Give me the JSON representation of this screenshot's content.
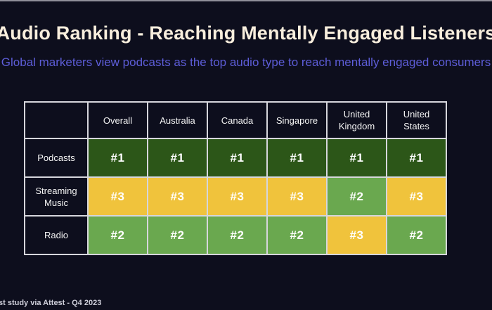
{
  "page": {
    "title": "Audio Ranking - Reaching Mentally Engaged Listeners",
    "subtitle": "Global marketers view podcasts as the top audio type to reach mentally engaged consumers",
    "footer": "st study via Attest - Q4 2023"
  },
  "colors": {
    "background": "#0d0e1d",
    "title_text": "#f8eedd",
    "subtitle_text": "#5d5dd8",
    "table_border": "#d6d6dc",
    "rank1_green": "#2c5618",
    "rank2_green": "#6aa84f",
    "rank3_yellow": "#f0c33c",
    "top_line": "#8f8f99"
  },
  "chart_data": {
    "type": "table",
    "title": "Audio Ranking - Reaching Mentally Engaged Listeners",
    "columns": [
      "Overall",
      "Australia",
      "Canada",
      "Singapore",
      "United Kingdom",
      "United States"
    ],
    "rows": [
      {
        "label": "Podcasts",
        "values": [
          "#1",
          "#1",
          "#1",
          "#1",
          "#1",
          "#1"
        ]
      },
      {
        "label": "Streaming Music",
        "values": [
          "#3",
          "#3",
          "#3",
          "#3",
          "#2",
          "#3"
        ]
      },
      {
        "label": "Radio",
        "values": [
          "#2",
          "#2",
          "#2",
          "#2",
          "#3",
          "#2"
        ]
      }
    ],
    "rank_colors": {
      "#1": "#2c5618",
      "#2": "#6aa84f",
      "#3": "#f0c33c"
    },
    "legend_position": "none",
    "grid": true
  }
}
